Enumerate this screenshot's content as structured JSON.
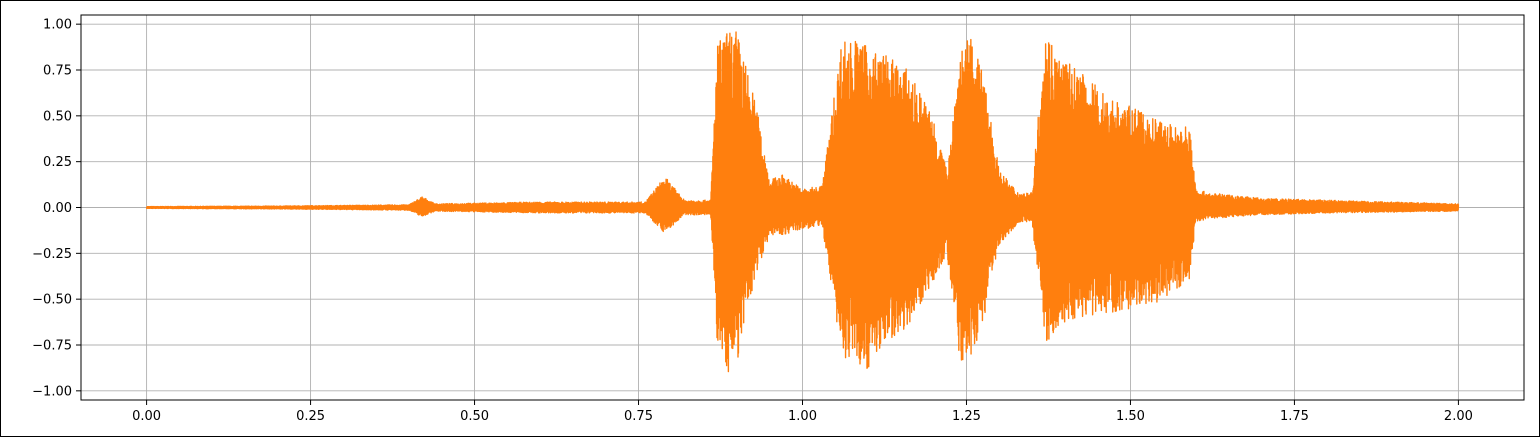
{
  "chart_data": {
    "type": "line",
    "title": "",
    "xlabel": "",
    "ylabel": "",
    "xlim": [
      -0.1,
      2.1
    ],
    "ylim": [
      -1.05,
      1.05
    ],
    "grid": true,
    "xticks": [
      0.0,
      0.25,
      0.5,
      0.75,
      1.0,
      1.25,
      1.5,
      1.75,
      2.0
    ],
    "xtick_labels": [
      "0.00",
      "0.25",
      "0.50",
      "0.75",
      "1.00",
      "1.25",
      "1.50",
      "1.75",
      "2.00"
    ],
    "yticks": [
      -1.0,
      -0.75,
      -0.5,
      -0.25,
      0.0,
      0.25,
      0.5,
      0.75,
      1.0
    ],
    "ytick_labels": [
      "−1.00",
      "−0.75",
      "−0.50",
      "−0.25",
      "0.00",
      "0.25",
      "0.50",
      "0.75",
      "1.00"
    ],
    "series": [
      {
        "color": "#ff7f0e",
        "envelope": {
          "t": [
            0.0,
            0.2,
            0.4,
            0.42,
            0.44,
            0.6,
            0.76,
            0.79,
            0.82,
            0.86,
            0.87,
            0.89,
            0.9,
            0.93,
            0.95,
            0.97,
            1.0,
            1.03,
            1.06,
            1.08,
            1.1,
            1.13,
            1.16,
            1.2,
            1.22,
            1.24,
            1.26,
            1.28,
            1.3,
            1.33,
            1.35,
            1.37,
            1.39,
            1.42,
            1.46,
            1.5,
            1.54,
            1.57,
            1.59,
            1.6,
            1.62,
            1.7,
            1.8,
            2.0
          ],
          "upper": [
            0.005,
            0.008,
            0.015,
            0.06,
            0.02,
            0.03,
            0.03,
            0.17,
            0.04,
            0.04,
            0.9,
            0.98,
            0.97,
            0.55,
            0.15,
            0.18,
            0.1,
            0.12,
            0.93,
            0.92,
            0.88,
            0.83,
            0.75,
            0.5,
            0.2,
            0.88,
            0.93,
            0.65,
            0.2,
            0.08,
            0.08,
            1.0,
            0.84,
            0.75,
            0.63,
            0.55,
            0.48,
            0.45,
            0.45,
            0.1,
            0.08,
            0.05,
            0.04,
            0.02
          ],
          "lower": [
            -0.005,
            -0.008,
            -0.015,
            -0.05,
            -0.02,
            -0.03,
            -0.03,
            -0.14,
            -0.04,
            -0.04,
            -0.75,
            -0.93,
            -0.85,
            -0.35,
            -0.15,
            -0.15,
            -0.12,
            -0.1,
            -0.82,
            -0.85,
            -0.88,
            -0.73,
            -0.65,
            -0.4,
            -0.25,
            -0.85,
            -0.82,
            -0.55,
            -0.2,
            -0.08,
            -0.08,
            -0.75,
            -0.66,
            -0.6,
            -0.58,
            -0.55,
            -0.52,
            -0.45,
            -0.4,
            -0.08,
            -0.06,
            -0.04,
            -0.03,
            -0.02
          ]
        }
      }
    ]
  }
}
